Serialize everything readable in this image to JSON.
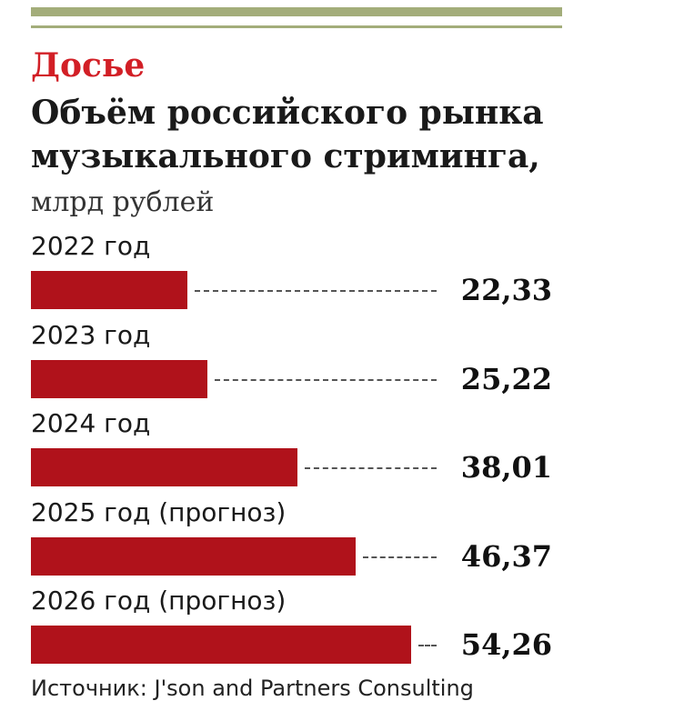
{
  "header": {
    "kicker": "Досье",
    "title": "Объём российского рынка музыкального стриминга,",
    "unit": "млрд рублей"
  },
  "colors": {
    "bar": "#b0121b",
    "kicker": "#d21f26",
    "rule": "#a3ad7a"
  },
  "chart_data": {
    "type": "bar",
    "orientation": "horizontal",
    "categories": [
      "2022 год",
      "2023 год",
      "2024 год",
      "2025 год (прогноз)",
      "2026 год (прогноз)"
    ],
    "values": [
      22.33,
      25.22,
      38.01,
      46.37,
      54.26
    ],
    "value_labels": [
      "22,33",
      "25,22",
      "38,01",
      "46,37",
      "54,26"
    ],
    "title": "Объём российского рынка музыкального стриминга, млрд рублей"
  },
  "footer": {
    "source": "Источник: J'son and Partners Consulting"
  }
}
